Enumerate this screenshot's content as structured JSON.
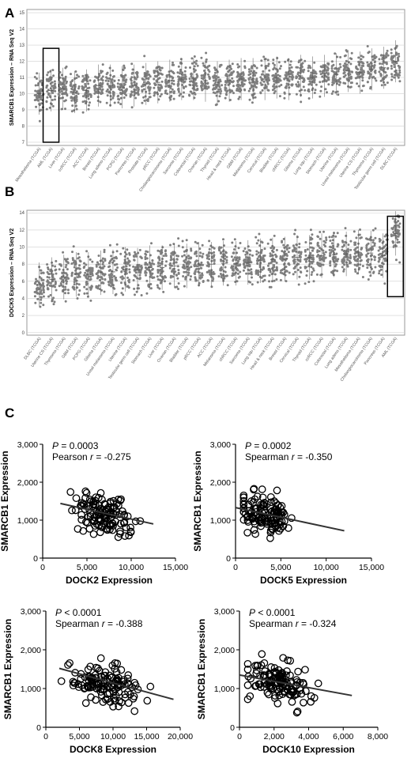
{
  "panel_labels": [
    "A",
    "B",
    "C"
  ],
  "colors": {
    "dot": "#7f7f7f",
    "ink": "#000000",
    "grid": "#cfcfcf",
    "frame": "#9a9a9a",
    "median": "#555555"
  },
  "chart_data": [
    {
      "panel": "A",
      "type": "scatter",
      "subtype": "strip",
      "ylabel": "SMARCB1 Expression – RNA Seq V2",
      "ylim": [
        6.8,
        15.2
      ],
      "y_ticks": [
        7,
        8,
        9,
        10,
        11,
        12,
        13,
        14,
        15
      ],
      "grid": true,
      "categories": [
        "Mesothelioma (TCGA)",
        "AML (TCGA)",
        "Liver (TCGA)",
        "ccRCC (TCGA)",
        "ACC (TCGA)",
        "Breast (TCGA)",
        "Lung adeno (TCGA)",
        "PCPG (TCGA)",
        "Pancreas (TCGA)",
        "Prostate (TCGA)",
        "pRCC (TCGA)",
        "Cholangiocarcinoma (TCGA)",
        "Sarcoma (TCGA)",
        "Colorectal (TCGA)",
        "Ovarian (TCGA)",
        "Thyroid (TCGA)",
        "Head & neck (TCGA)",
        "GBM (TCGA)",
        "Melanoma (TCGA)",
        "Cervical (TCGA)",
        "Bladder (TCGA)",
        "chRCC (TCGA)",
        "Glioma (TCGA)",
        "Lung squ (TCGA)",
        "Stomach (TCGA)",
        "Uterine (TCGA)",
        "Uveal melanoma (TCGA)",
        "Uterine CS (TCGA)",
        "Thymoma (TCGA)",
        "Testicular germ cell (TCGA)",
        "DLBC (TCGA)"
      ],
      "medians": [
        10.0,
        10.2,
        10.3,
        10.1,
        10.2,
        10.5,
        10.5,
        10.4,
        10.5,
        10.6,
        10.7,
        10.8,
        10.9,
        10.9,
        10.8,
        10.7,
        10.8,
        10.9,
        10.9,
        10.9,
        11.0,
        10.9,
        11.1,
        11.0,
        11.1,
        11.2,
        11.4,
        11.3,
        11.5,
        11.6,
        12.0
      ],
      "highlighted": "AML (TCGA)"
    },
    {
      "panel": "B",
      "type": "scatter",
      "subtype": "strip",
      "ylabel": "DOCK5 Expression – RNA Seq V2",
      "ylim": [
        -0.3,
        14.3
      ],
      "y_ticks": [
        0,
        2,
        4,
        6,
        8,
        10,
        12,
        14
      ],
      "grid": true,
      "categories": [
        "DLBC (TCGA)",
        "Uterine CS (TCGA)",
        "Thymoma (TCGA)",
        "GBM (TCGA)",
        "PCPG (TCGA)",
        "Glioma (TCGA)",
        "Uveal melanoma (TCGA)",
        "Uterine (TCGA)",
        "Testicular germ cell (TCGA)",
        "Stomach (TCGA)",
        "Liver (TCGA)",
        "Ovarian (TCGA)",
        "Bladder (TCGA)",
        "pRCC (TCGA)",
        "ACC (TCGA)",
        "Melanoma (TCGA)",
        "chRCC (TCGA)",
        "Sarcoma (TCGA)",
        "Lung squ (TCGA)",
        "Head & neck (TCGA)",
        "Breast (TCGA)",
        "Cervical (TCGA)",
        "Thyroid (TCGA)",
        "ccRCC (TCGA)",
        "Colorectal (TCGA)",
        "Lung adeno (TCGA)",
        "Mesothelioma (TCGA)",
        "Cholangiocarcinoma (TCGA)",
        "Pancreas (TCGA)",
        "AML (TCGA)"
      ],
      "medians": [
        5.6,
        6.2,
        6.5,
        6.8,
        6.8,
        7.0,
        7.1,
        7.4,
        7.3,
        7.6,
        7.6,
        7.8,
        7.8,
        8.0,
        8.0,
        8.1,
        8.1,
        8.2,
        8.4,
        8.5,
        8.6,
        8.8,
        8.8,
        9.0,
        9.1,
        9.2,
        9.4,
        9.3,
        9.0,
        11.6
      ],
      "highlighted": "AML (TCGA)"
    },
    {
      "panel": "C1",
      "type": "scatter",
      "stat": {
        "p": "0.0003",
        "r": "-0.275",
        "method": "Pearson",
        "p_op": "="
      },
      "xlabel": "DOCK2 Expression",
      "ylabel": "SMARCB1 Expression",
      "xlim": [
        0,
        15000
      ],
      "ylim": [
        0,
        3000
      ],
      "x_ticks": [
        "0",
        "5,000",
        "10,000",
        "15,000"
      ],
      "y_ticks": [
        "0",
        "1,000",
        "2,000",
        "3,000"
      ],
      "fit": {
        "x": [
          2000,
          12500
        ],
        "y": [
          1440,
          900
        ]
      },
      "cloud": {
        "x_center": 6800,
        "x_spread": 1800,
        "y_center": 1180,
        "y_spread": 260
      }
    },
    {
      "panel": "C2",
      "type": "scatter",
      "stat": {
        "p": "0.0002",
        "r": "-0.350",
        "method": "Spearman",
        "p_op": "="
      },
      "xlabel": "DOCK5 Expression",
      "ylabel": "SMARCB1 Expression",
      "xlim": [
        0,
        15000
      ],
      "ylim": [
        0,
        3000
      ],
      "x_ticks": [
        "0",
        "5,000",
        "10,000",
        "15,000"
      ],
      "y_ticks": [
        "0",
        "1,000",
        "2,000",
        "3,000"
      ],
      "fit": {
        "x": [
          0,
          12000
        ],
        "y": [
          1330,
          720
        ]
      },
      "cloud": {
        "x_center": 3200,
        "x_spread": 1500,
        "y_center": 1150,
        "y_spread": 260
      }
    },
    {
      "panel": "C3",
      "type": "scatter",
      "stat": {
        "p": "0.0001",
        "r": "-0.388",
        "method": "Spearman",
        "p_op": "<"
      },
      "xlabel": "DOCK8 Expression",
      "ylabel": "SMARCB1 Expression",
      "xlim": [
        0,
        20000
      ],
      "ylim": [
        0,
        3000
      ],
      "x_ticks": [
        "0",
        "5,000",
        "10,000",
        "15,000",
        "20,000"
      ],
      "y_ticks": [
        "0",
        "1,000",
        "2,000",
        "3,000"
      ],
      "fit": {
        "x": [
          2000,
          19000
        ],
        "y": [
          1520,
          720
        ]
      },
      "cloud": {
        "x_center": 8800,
        "x_spread": 2600,
        "y_center": 1130,
        "y_spread": 260
      }
    },
    {
      "panel": "C4",
      "type": "scatter",
      "stat": {
        "p": "0.0001",
        "r": "-0.324",
        "method": "Spearman",
        "p_op": "<"
      },
      "xlabel": "DOCK10 Expression",
      "ylabel": "SMARCB1 Expression",
      "xlim": [
        0,
        8000
      ],
      "ylim": [
        0,
        3000
      ],
      "x_ticks": [
        "0",
        "2,000",
        "4,000",
        "6,000",
        "8,000"
      ],
      "y_ticks": [
        "0",
        "1,000",
        "2,000",
        "3,000"
      ],
      "fit": {
        "x": [
          0,
          6500
        ],
        "y": [
          1350,
          820
        ]
      },
      "cloud": {
        "x_center": 2300,
        "x_spread": 950,
        "y_center": 1130,
        "y_spread": 260
      }
    }
  ]
}
